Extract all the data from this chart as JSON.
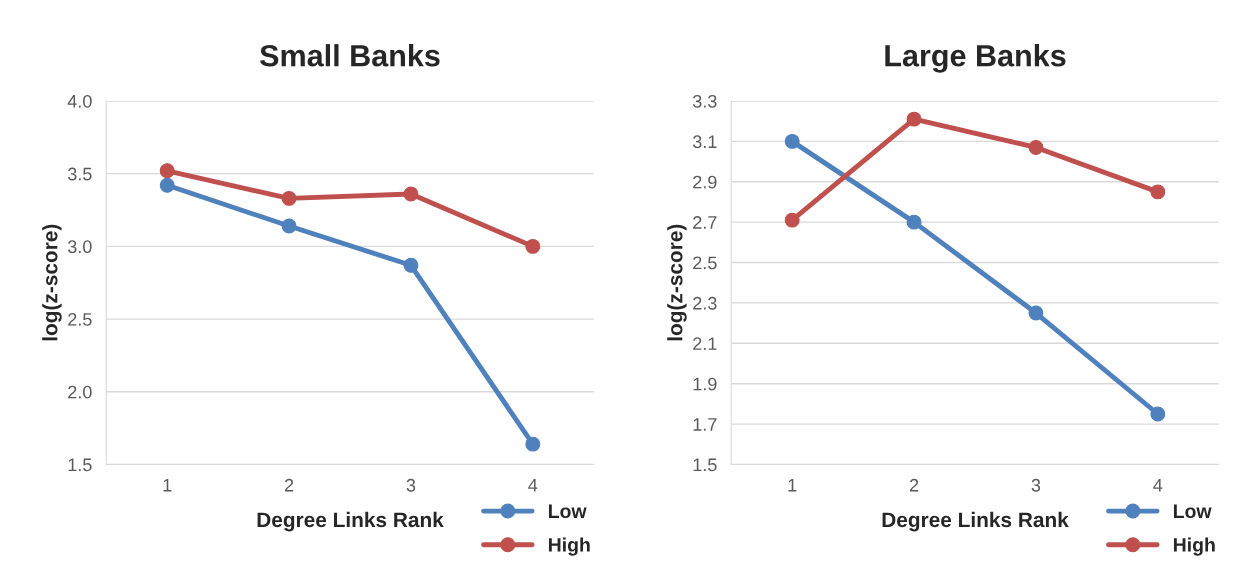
{
  "chart_data": [
    {
      "type": "line",
      "title": "Small Banks",
      "xlabel": "Degree Links Rank",
      "ylabel": "log(z-score)",
      "categories": [
        "1",
        "2",
        "3",
        "4"
      ],
      "series": [
        {
          "name": "Low",
          "color": "#4f81bd",
          "values": [
            3.42,
            3.14,
            2.87,
            1.64
          ]
        },
        {
          "name": "High",
          "color": "#c0504d",
          "values": [
            3.52,
            3.33,
            3.36,
            3.0
          ]
        }
      ],
      "ylim": [
        1.5,
        4.0
      ],
      "yticks": [
        1.5,
        {
          "value": 2,
          "label": "2.0"
        },
        2.5,
        {
          "value": 3,
          "label": "3.0"
        },
        3.5,
        {
          "value": 4,
          "label": "4.0"
        }
      ],
      "grid": "y",
      "legend": "bottom right",
      "marker": "circle",
      "line_style": "solid"
    },
    {
      "type": "line",
      "title": "Large Banks",
      "xlabel": "Degree Links Rank",
      "ylabel": "log(z-score)",
      "categories": [
        "1",
        "2",
        "3",
        "4"
      ],
      "series": [
        {
          "name": "Low",
          "color": "#4f81bd",
          "values": [
            3.1,
            2.7,
            2.25,
            1.75
          ]
        },
        {
          "name": "High",
          "color": "#c0504d",
          "values": [
            2.71,
            3.21,
            3.07,
            2.85
          ]
        }
      ],
      "ylim": [
        1.5,
        3.3
      ],
      "yticks": [
        1.5,
        1.7,
        1.9,
        2.1,
        2.3,
        2.5,
        2.7,
        2.9,
        3.1,
        3.3
      ],
      "grid": "y",
      "legend": "bottom right",
      "marker": "circle",
      "line_style": "solid"
    }
  ]
}
